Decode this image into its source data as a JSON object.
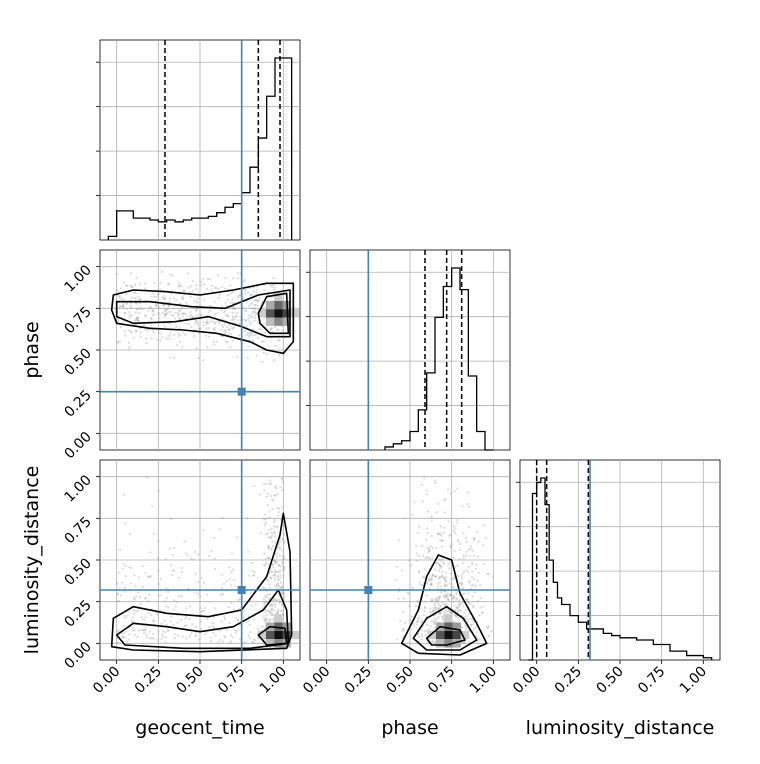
{
  "chart_data": {
    "type": "corner",
    "parameters": [
      {
        "name": "geocent_time",
        "label": "geocent_time",
        "truth": 0.75,
        "quantiles": [
          0.29,
          0.85,
          0.98
        ]
      },
      {
        "name": "phase",
        "label": "phase",
        "truth": 0.25,
        "quantiles": [
          0.59,
          0.72,
          0.81
        ]
      },
      {
        "name": "luminosity_distance",
        "label": "luminosity_distance",
        "truth": 0.32,
        "quantiles": [
          0.0,
          0.06,
          0.31
        ]
      }
    ],
    "tick_labels": [
      "0.00",
      "0.25",
      "0.50",
      "0.75",
      "1.00"
    ],
    "tick_values": [
      0,
      0.25,
      0.5,
      0.75,
      1.0
    ],
    "axis_range": [
      -0.1,
      1.1
    ],
    "grid": true,
    "truth_color": "#4682b4",
    "histograms": [
      {
        "param": "geocent_time",
        "bin_edges": [
          -0.05,
          0.0,
          0.05,
          0.1,
          0.15,
          0.2,
          0.25,
          0.3,
          0.35,
          0.4,
          0.45,
          0.5,
          0.55,
          0.6,
          0.65,
          0.7,
          0.75,
          0.8,
          0.85,
          0.9,
          0.95,
          1.0,
          1.05
        ],
        "counts": [
          2,
          16,
          16,
          12,
          12,
          11,
          10,
          11,
          10,
          11,
          12,
          12,
          13,
          15,
          18,
          20,
          26,
          40,
          56,
          79,
          100,
          100
        ]
      },
      {
        "param": "phase",
        "bin_edges": [
          0.35,
          0.4,
          0.45,
          0.5,
          0.55,
          0.6,
          0.65,
          0.7,
          0.75,
          0.8,
          0.85,
          0.9,
          0.95,
          1.0
        ],
        "counts": [
          1,
          2,
          3,
          6,
          13,
          25,
          43,
          53,
          59,
          52,
          24,
          6,
          0
        ]
      },
      {
        "param": "luminosity_distance",
        "bin_edges": [
          -0.05,
          -0.025,
          0.0,
          0.025,
          0.05,
          0.075,
          0.1,
          0.125,
          0.15,
          0.2,
          0.25,
          0.3,
          0.35,
          0.4,
          0.45,
          0.5,
          0.55,
          0.6,
          0.7,
          0.8,
          0.9,
          1.0,
          1.05
        ],
        "counts": [
          0,
          75,
          80,
          82,
          70,
          45,
          35,
          28,
          25,
          20,
          17,
          14,
          14,
          12,
          11,
          10,
          10,
          9,
          7,
          4,
          2,
          1
        ]
      }
    ],
    "density_2d": [
      {
        "x": "geocent_time",
        "y": "phase",
        "scatter_region": {
          "x_range": [
            0.0,
            1.0
          ],
          "y_range": [
            0.4,
            0.97
          ]
        },
        "peak": {
          "x": 0.97,
          "y": 0.72
        },
        "contours": [
          [
            [
              -0.02,
              0.83
            ],
            [
              0.1,
              0.86
            ],
            [
              0.3,
              0.85
            ],
            [
              0.5,
              0.83
            ],
            [
              0.7,
              0.86
            ],
            [
              0.9,
              0.9
            ],
            [
              1.06,
              0.9
            ],
            [
              1.06,
              0.55
            ],
            [
              1.0,
              0.48
            ],
            [
              0.9,
              0.5
            ],
            [
              0.8,
              0.55
            ],
            [
              0.6,
              0.6
            ],
            [
              0.4,
              0.62
            ],
            [
              0.2,
              0.63
            ],
            [
              0.0,
              0.66
            ],
            [
              -0.03,
              0.74
            ]
          ],
          [
            [
              0.0,
              0.79
            ],
            [
              0.2,
              0.79
            ],
            [
              0.45,
              0.76
            ],
            [
              0.65,
              0.75
            ],
            [
              0.85,
              0.83
            ],
            [
              1.04,
              0.86
            ],
            [
              1.04,
              0.58
            ],
            [
              0.9,
              0.58
            ],
            [
              0.75,
              0.64
            ],
            [
              0.55,
              0.7
            ],
            [
              0.35,
              0.67
            ],
            [
              0.1,
              0.66
            ],
            [
              0.0,
              0.7
            ]
          ],
          [
            [
              0.85,
              0.72
            ],
            [
              0.9,
              0.82
            ],
            [
              1.02,
              0.84
            ],
            [
              1.03,
              0.6
            ],
            [
              0.92,
              0.6
            ],
            [
              0.86,
              0.66
            ]
          ]
        ]
      },
      {
        "x": "geocent_time",
        "y": "luminosity_distance",
        "scatter_region": {
          "x_range": [
            0.0,
            1.0
          ],
          "y_range": [
            0.0,
            1.0
          ]
        },
        "peak": {
          "x": 0.97,
          "y": 0.05
        },
        "contours": [
          [
            [
              -0.03,
              -0.02
            ],
            [
              -0.02,
              0.15
            ],
            [
              0.1,
              0.22
            ],
            [
              0.3,
              0.18
            ],
            [
              0.55,
              0.16
            ],
            [
              0.75,
              0.2
            ],
            [
              0.9,
              0.4
            ],
            [
              0.98,
              0.65
            ],
            [
              1.0,
              0.78
            ],
            [
              1.04,
              0.55
            ],
            [
              1.05,
              0.05
            ],
            [
              1.02,
              -0.03
            ],
            [
              0.5,
              -0.05
            ],
            [
              0.1,
              -0.04
            ]
          ],
          [
            [
              0.0,
              0.05
            ],
            [
              0.1,
              0.12
            ],
            [
              0.3,
              0.1
            ],
            [
              0.5,
              0.07
            ],
            [
              0.7,
              0.1
            ],
            [
              0.88,
              0.2
            ],
            [
              0.97,
              0.32
            ],
            [
              1.02,
              0.2
            ],
            [
              1.03,
              0.0
            ],
            [
              0.8,
              -0.03
            ],
            [
              0.4,
              -0.03
            ],
            [
              0.05,
              -0.01
            ]
          ],
          [
            [
              0.85,
              0.05
            ],
            [
              0.92,
              0.1
            ],
            [
              1.01,
              0.09
            ],
            [
              1.02,
              0.0
            ],
            [
              0.9,
              -0.01
            ]
          ]
        ]
      },
      {
        "x": "phase",
        "y": "luminosity_distance",
        "scatter_region": {
          "x_range": [
            0.35,
            1.0
          ],
          "y_range": [
            0.0,
            1.0
          ]
        },
        "peak": {
          "x": 0.73,
          "y": 0.05
        },
        "contours": [
          [
            [
              0.45,
              0.0
            ],
            [
              0.55,
              0.2
            ],
            [
              0.6,
              0.4
            ],
            [
              0.67,
              0.53
            ],
            [
              0.75,
              0.5
            ],
            [
              0.8,
              0.3
            ],
            [
              0.9,
              0.12
            ],
            [
              0.96,
              0.0
            ],
            [
              0.8,
              -0.07
            ],
            [
              0.55,
              -0.06
            ]
          ],
          [
            [
              0.52,
              0.03
            ],
            [
              0.6,
              0.15
            ],
            [
              0.72,
              0.22
            ],
            [
              0.82,
              0.15
            ],
            [
              0.9,
              0.02
            ],
            [
              0.8,
              -0.04
            ],
            [
              0.6,
              -0.04
            ]
          ],
          [
            [
              0.6,
              0.03
            ],
            [
              0.68,
              0.1
            ],
            [
              0.8,
              0.08
            ],
            [
              0.83,
              0.02
            ],
            [
              0.72,
              -0.01
            ],
            [
              0.63,
              -0.01
            ]
          ]
        ]
      }
    ]
  }
}
